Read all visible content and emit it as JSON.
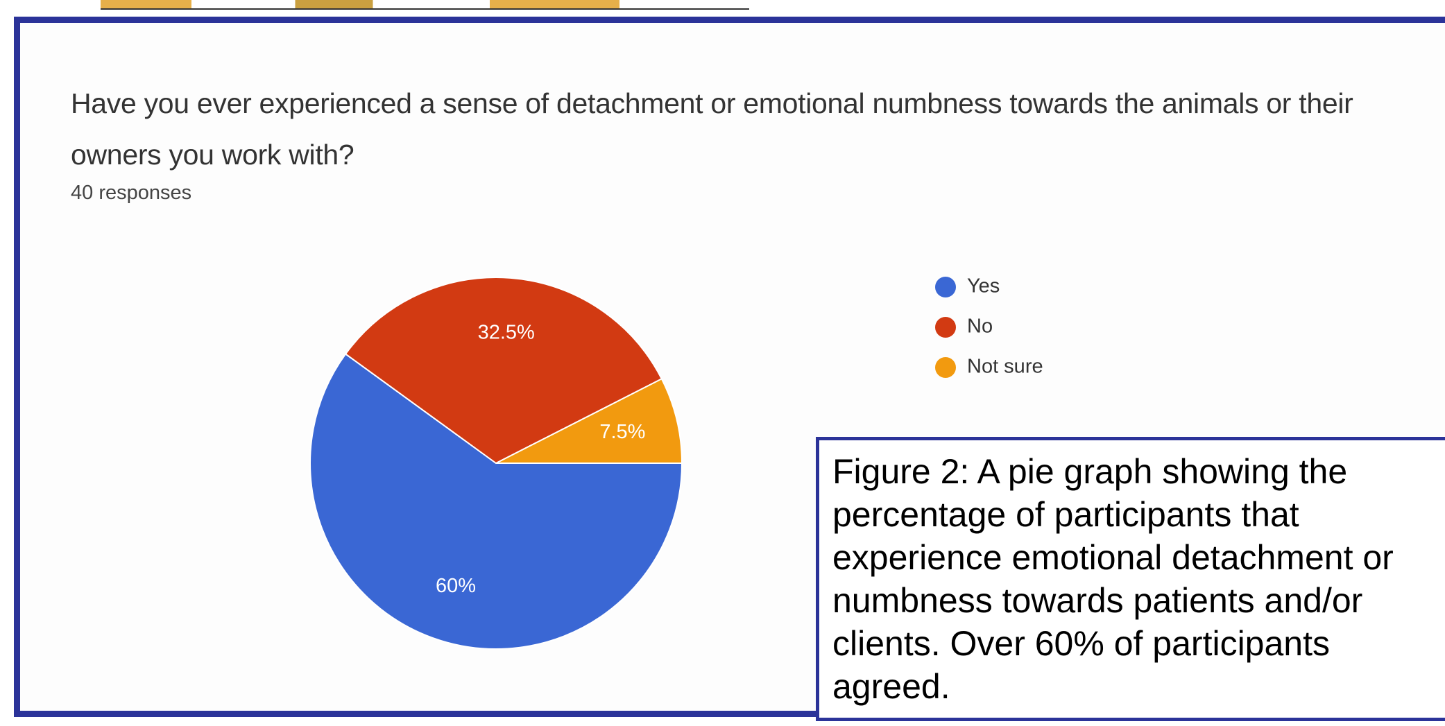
{
  "chart_data": {
    "type": "pie",
    "title": "Have you ever experienced a sense of detachment or emotional numbness towards the animals or their owners you work with?",
    "subtitle": "40 responses",
    "categories": [
      "Yes",
      "No",
      "Not sure"
    ],
    "values": [
      60,
      32.5,
      7.5
    ],
    "value_labels": [
      "60%",
      "32.5%",
      "7.5%"
    ],
    "colors": [
      "#3a67d4",
      "#d23a12",
      "#f29a0f"
    ],
    "legend": "right"
  },
  "caption": {
    "lines": [
      "Figure 2: A pie graph showing the",
      "percentage of participants that",
      "experience emotional detachment or",
      "numbness towards patients and/or",
      "clients. Over 60% of participants",
      "agreed."
    ]
  }
}
